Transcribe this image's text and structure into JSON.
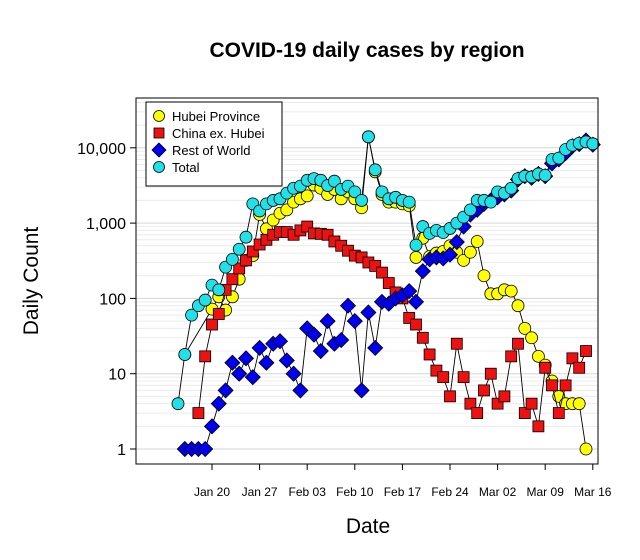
{
  "chart_data": {
    "type": "line",
    "title": "COVID-19 daily cases by region",
    "xlabel": "Date",
    "ylabel": "Daily Count",
    "yscale": "log",
    "ylim": [
      1,
      20000
    ],
    "xlim": [
      "2020-01-15",
      "2020-03-17"
    ],
    "grid": true,
    "legend_position": "top-left",
    "yticks": [
      {
        "value": 1,
        "label": "1"
      },
      {
        "value": 10,
        "label": "10"
      },
      {
        "value": 100,
        "label": "100"
      },
      {
        "value": 1000,
        "label": "1,000"
      },
      {
        "value": 10000,
        "label": "10,000"
      }
    ],
    "xticks": [
      {
        "date": "2020-01-20",
        "label": "Jan 20"
      },
      {
        "date": "2020-01-27",
        "label": "Jan 27"
      },
      {
        "date": "2020-02-03",
        "label": "Feb 03"
      },
      {
        "date": "2020-02-10",
        "label": "Feb 10"
      },
      {
        "date": "2020-02-17",
        "label": "Feb 17"
      },
      {
        "date": "2020-02-24",
        "label": "Feb 24"
      },
      {
        "date": "2020-03-02",
        "label": "Mar 02"
      },
      {
        "date": "2020-03-09",
        "label": "Mar 09"
      },
      {
        "date": "2020-03-16",
        "label": "Mar 16"
      }
    ],
    "series": [
      {
        "name": "Hubei Province",
        "color": "#ffff00",
        "marker": "circle",
        "points": [
          [
            "2020-01-16",
            18
          ],
          [
            "2020-01-20",
            72
          ],
          [
            "2020-01-21",
            105
          ],
          [
            "2020-01-22",
            70
          ],
          [
            "2020-01-23",
            105
          ],
          [
            "2020-01-24",
            180
          ],
          [
            "2020-01-25",
            320
          ],
          [
            "2020-01-26",
            370
          ],
          [
            "2020-01-27",
            1300
          ],
          [
            "2020-01-28",
            840
          ],
          [
            "2020-01-29",
            1100
          ],
          [
            "2020-01-30",
            1350
          ],
          [
            "2020-01-31",
            1500
          ],
          [
            "2020-02-01",
            1900
          ],
          [
            "2020-02-02",
            2100
          ],
          [
            "2020-02-03",
            2300
          ],
          [
            "2020-02-04",
            3200
          ],
          [
            "2020-02-05",
            2900
          ],
          [
            "2020-02-06",
            2400
          ],
          [
            "2020-02-07",
            2800
          ],
          [
            "2020-02-08",
            2100
          ],
          [
            "2020-02-09",
            2600
          ],
          [
            "2020-02-10",
            2100
          ],
          [
            "2020-02-11",
            1600
          ],
          [
            "2020-02-12",
            14000
          ],
          [
            "2020-02-13",
            4800
          ],
          [
            "2020-02-14",
            2400
          ],
          [
            "2020-02-15",
            1900
          ],
          [
            "2020-02-16",
            1900
          ],
          [
            "2020-02-17",
            1800
          ],
          [
            "2020-02-18",
            1700
          ],
          [
            "2020-02-19",
            350
          ],
          [
            "2020-02-20",
            630
          ],
          [
            "2020-02-21",
            360
          ],
          [
            "2020-02-22",
            400
          ],
          [
            "2020-02-23",
            420
          ],
          [
            "2020-02-24",
            500
          ],
          [
            "2020-02-25",
            410
          ],
          [
            "2020-02-26",
            320
          ],
          [
            "2020-02-27",
            410
          ],
          [
            "2020-02-28",
            570
          ],
          [
            "2020-02-29",
            200
          ],
          [
            "2020-03-01",
            115
          ],
          [
            "2020-03-02",
            115
          ],
          [
            "2020-03-03",
            130
          ],
          [
            "2020-03-04",
            125
          ],
          [
            "2020-03-05",
            80
          ],
          [
            "2020-03-06",
            40
          ],
          [
            "2020-03-07",
            30
          ],
          [
            "2020-03-08",
            17
          ],
          [
            "2020-03-09",
            13
          ],
          [
            "2020-03-10",
            8
          ],
          [
            "2020-03-11",
            5
          ],
          [
            "2020-03-12",
            4
          ],
          [
            "2020-03-13",
            4
          ],
          [
            "2020-03-14",
            4
          ],
          [
            "2020-03-15",
            1
          ]
        ]
      },
      {
        "name": "China ex. Hubei",
        "color": "#ee1111",
        "marker": "square",
        "points": [
          [
            "2020-01-18",
            3
          ],
          [
            "2020-01-19",
            17
          ],
          [
            "2020-01-20",
            45
          ],
          [
            "2020-01-21",
            62
          ],
          [
            "2020-01-22",
            130
          ],
          [
            "2020-01-23",
            180
          ],
          [
            "2020-01-24",
            250
          ],
          [
            "2020-01-25",
            320
          ],
          [
            "2020-01-26",
            420
          ],
          [
            "2020-01-27",
            520
          ],
          [
            "2020-01-28",
            600
          ],
          [
            "2020-01-29",
            700
          ],
          [
            "2020-01-30",
            760
          ],
          [
            "2020-01-31",
            760
          ],
          [
            "2020-02-01",
            700
          ],
          [
            "2020-02-02",
            800
          ],
          [
            "2020-02-03",
            900
          ],
          [
            "2020-02-04",
            730
          ],
          [
            "2020-02-05",
            720
          ],
          [
            "2020-02-06",
            700
          ],
          [
            "2020-02-07",
            570
          ],
          [
            "2020-02-08",
            500
          ],
          [
            "2020-02-09",
            430
          ],
          [
            "2020-02-10",
            370
          ],
          [
            "2020-02-11",
            350
          ],
          [
            "2020-02-12",
            300
          ],
          [
            "2020-02-13",
            270
          ],
          [
            "2020-02-14",
            220
          ],
          [
            "2020-02-15",
            160
          ],
          [
            "2020-02-16",
            120
          ],
          [
            "2020-02-17",
            100
          ],
          [
            "2020-02-18",
            55
          ],
          [
            "2020-02-19",
            45
          ],
          [
            "2020-02-20",
            30
          ],
          [
            "2020-02-21",
            18
          ],
          [
            "2020-02-22",
            11
          ],
          [
            "2020-02-23",
            9
          ],
          [
            "2020-02-24",
            5
          ],
          [
            "2020-02-25",
            25
          ],
          [
            "2020-02-26",
            9
          ],
          [
            "2020-02-27",
            4
          ],
          [
            "2020-02-28",
            3
          ],
          [
            "2020-02-29",
            6
          ],
          [
            "2020-03-01",
            10
          ],
          [
            "2020-03-02",
            4
          ],
          [
            "2020-03-03",
            5
          ],
          [
            "2020-03-04",
            17
          ],
          [
            "2020-03-05",
            25
          ],
          [
            "2020-03-06",
            3
          ],
          [
            "2020-03-07",
            4
          ],
          [
            "2020-03-08",
            2
          ],
          [
            "2020-03-09",
            12
          ],
          [
            "2020-03-10",
            7
          ],
          [
            "2020-03-11",
            3
          ],
          [
            "2020-03-12",
            7
          ],
          [
            "2020-03-13",
            16
          ],
          [
            "2020-03-14",
            12
          ],
          [
            "2020-03-15",
            20
          ]
        ]
      },
      {
        "name": "Rest of World",
        "color": "#0000ee",
        "marker": "diamond",
        "points": [
          [
            "2020-01-16",
            1
          ],
          [
            "2020-01-17",
            1
          ],
          [
            "2020-01-18",
            1
          ],
          [
            "2020-01-19",
            1
          ],
          [
            "2020-01-20",
            2
          ],
          [
            "2020-01-21",
            4
          ],
          [
            "2020-01-22",
            6
          ],
          [
            "2020-01-23",
            14
          ],
          [
            "2020-01-24",
            10
          ],
          [
            "2020-01-25",
            16
          ],
          [
            "2020-01-26",
            9
          ],
          [
            "2020-01-27",
            22
          ],
          [
            "2020-01-28",
            14
          ],
          [
            "2020-01-29",
            25
          ],
          [
            "2020-01-30",
            27
          ],
          [
            "2020-01-31",
            15
          ],
          [
            "2020-02-01",
            10
          ],
          [
            "2020-02-02",
            6
          ],
          [
            "2020-02-03",
            40
          ],
          [
            "2020-02-04",
            33
          ],
          [
            "2020-02-05",
            20
          ],
          [
            "2020-02-06",
            50
          ],
          [
            "2020-02-07",
            25
          ],
          [
            "2020-02-08",
            28
          ],
          [
            "2020-02-09",
            80
          ],
          [
            "2020-02-10",
            50
          ],
          [
            "2020-02-11",
            6
          ],
          [
            "2020-02-12",
            65
          ],
          [
            "2020-02-13",
            22
          ],
          [
            "2020-02-14",
            90
          ],
          [
            "2020-02-15",
            85
          ],
          [
            "2020-02-16",
            100
          ],
          [
            "2020-02-17",
            110
          ],
          [
            "2020-02-18",
            125
          ],
          [
            "2020-02-19",
            90
          ],
          [
            "2020-02-20",
            230
          ],
          [
            "2020-02-21",
            330
          ],
          [
            "2020-02-22",
            350
          ],
          [
            "2020-02-23",
            340
          ],
          [
            "2020-02-24",
            380
          ],
          [
            "2020-02-25",
            560
          ],
          [
            "2020-02-26",
            900
          ],
          [
            "2020-02-27",
            1300
          ],
          [
            "2020-02-28",
            1500
          ],
          [
            "2020-02-29",
            1800
          ],
          [
            "2020-03-01",
            2000
          ],
          [
            "2020-03-02",
            2200
          ],
          [
            "2020-03-03",
            2400
          ],
          [
            "2020-03-04",
            2700
          ],
          [
            "2020-03-05",
            3800
          ],
          [
            "2020-03-06",
            4200
          ],
          [
            "2020-03-07",
            4000
          ],
          [
            "2020-03-08",
            4500
          ],
          [
            "2020-03-09",
            4200
          ],
          [
            "2020-03-10",
            6200
          ],
          [
            "2020-03-11",
            7000
          ],
          [
            "2020-03-12",
            8500
          ],
          [
            "2020-03-13",
            10500
          ],
          [
            "2020-03-14",
            11200
          ],
          [
            "2020-03-15",
            12500
          ],
          [
            "2020-03-16",
            11000
          ]
        ]
      },
      {
        "name": "Total",
        "color": "#22e0e8",
        "marker": "circle",
        "points": [
          [
            "2020-01-15",
            4
          ],
          [
            "2020-01-16",
            18
          ],
          [
            "2020-01-17",
            60
          ],
          [
            "2020-01-18",
            80
          ],
          [
            "2020-01-19",
            95
          ],
          [
            "2020-01-20",
            150
          ],
          [
            "2020-01-21",
            130
          ],
          [
            "2020-01-22",
            260
          ],
          [
            "2020-01-23",
            330
          ],
          [
            "2020-01-24",
            450
          ],
          [
            "2020-01-25",
            650
          ],
          [
            "2020-01-26",
            1800
          ],
          [
            "2020-01-27",
            1450
          ],
          [
            "2020-01-28",
            1800
          ],
          [
            "2020-01-29",
            2000
          ],
          [
            "2020-01-30",
            2100
          ],
          [
            "2020-01-31",
            2500
          ],
          [
            "2020-02-01",
            2900
          ],
          [
            "2020-02-02",
            3100
          ],
          [
            "2020-02-03",
            3700
          ],
          [
            "2020-02-04",
            3900
          ],
          [
            "2020-02-05",
            3700
          ],
          [
            "2020-02-06",
            3150
          ],
          [
            "2020-02-07",
            3600
          ],
          [
            "2020-02-08",
            2800
          ],
          [
            "2020-02-09",
            3100
          ],
          [
            "2020-02-10",
            2600
          ],
          [
            "2020-02-11",
            2000
          ],
          [
            "2020-02-12",
            14000
          ],
          [
            "2020-02-13",
            5100
          ],
          [
            "2020-02-14",
            2600
          ],
          [
            "2020-02-15",
            2100
          ],
          [
            "2020-02-16",
            2200
          ],
          [
            "2020-02-17",
            2000
          ],
          [
            "2020-02-18",
            1900
          ],
          [
            "2020-02-19",
            510
          ],
          [
            "2020-02-20",
            900
          ],
          [
            "2020-02-21",
            730
          ],
          [
            "2020-02-22",
            800
          ],
          [
            "2020-02-23",
            750
          ],
          [
            "2020-02-24",
            850
          ],
          [
            "2020-02-25",
            1000
          ],
          [
            "2020-02-26",
            1200
          ],
          [
            "2020-02-27",
            1500
          ],
          [
            "2020-02-28",
            2000
          ],
          [
            "2020-02-29",
            2000
          ],
          [
            "2020-03-01",
            1900
          ],
          [
            "2020-03-02",
            2600
          ],
          [
            "2020-03-03",
            2500
          ],
          [
            "2020-03-04",
            2900
          ],
          [
            "2020-03-05",
            3900
          ],
          [
            "2020-03-06",
            4200
          ],
          [
            "2020-03-07",
            4100
          ],
          [
            "2020-03-08",
            4500
          ],
          [
            "2020-03-09",
            4300
          ],
          [
            "2020-03-10",
            7000
          ],
          [
            "2020-03-11",
            7300
          ],
          [
            "2020-03-12",
            9500
          ],
          [
            "2020-03-13",
            10800
          ],
          [
            "2020-03-14",
            11500
          ],
          [
            "2020-03-15",
            12000
          ],
          [
            "2020-03-16",
            11300
          ]
        ]
      }
    ]
  }
}
